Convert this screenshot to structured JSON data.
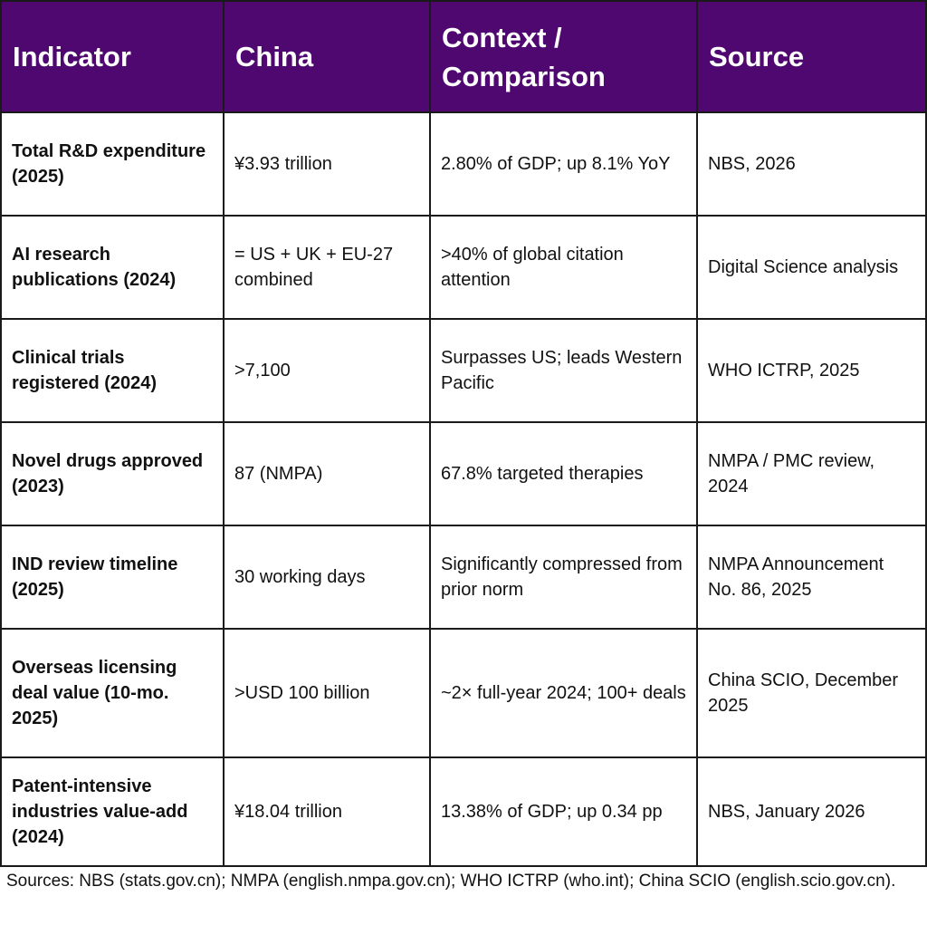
{
  "table": {
    "headers": [
      "Indicator",
      "China",
      "Context / Comparison",
      "Source"
    ],
    "rows": [
      {
        "indicator": "Total R&D expenditure (2025)",
        "china": "¥3.93 trillion",
        "context": "2.80% of GDP; up 8.1% YoY",
        "source": "NBS, 2026"
      },
      {
        "indicator": "AI research publications (2024)",
        "china": "= US + UK + EU-27 combined",
        "context": ">40% of global citation attention",
        "source": "Digital Science analysis"
      },
      {
        "indicator": "Clinical trials registered (2024)",
        "china": ">7,100",
        "context": "Surpasses US; leads Western Pacific",
        "source": "WHO ICTRP, 2025"
      },
      {
        "indicator": "Novel drugs approved (2023)",
        "china": "87 (NMPA)",
        "context": "67.8% targeted therapies",
        "source": "NMPA / PMC review, 2024"
      },
      {
        "indicator": "IND review timeline (2025)",
        "china": "30 working days",
        "context": "Significantly compressed from prior norm",
        "source": "NMPA Announcement No. 86, 2025"
      },
      {
        "indicator": "Overseas licensing deal value (10-mo. 2025)",
        "china": ">USD 100 billion",
        "context": "~2× full-year 2024; 100+ deals",
        "source": "China SCIO, December 2025"
      },
      {
        "indicator": "Patent-intensive industries value-add (2024)",
        "china": "¥18.04 trillion",
        "context": "13.38% of GDP; up 0.34 pp",
        "source": "NBS, January 2026"
      }
    ]
  },
  "footer": "Sources: NBS (stats.gov.cn); NMPA (english.nmpa.gov.cn); WHO ICTRP (who.int); China SCIO (english.scio.gov.cn).",
  "colors": {
    "header_bg": "#4f0870",
    "header_text": "#ffffff",
    "border": "#1a1a1a"
  }
}
